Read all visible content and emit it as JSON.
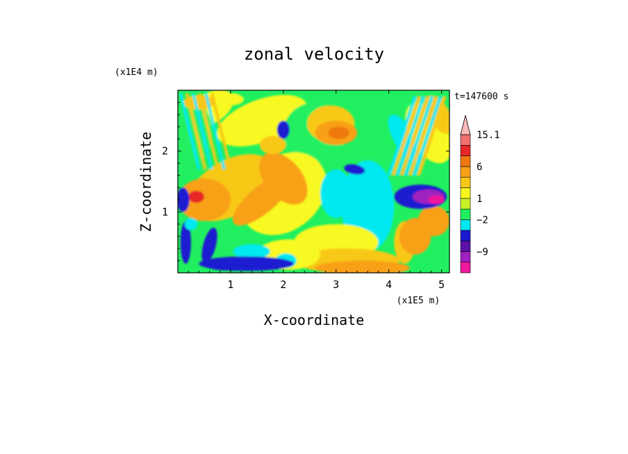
{
  "chart_data": {
    "type": "heatmap",
    "title": "zonal velocity",
    "xlabel": "X-coordinate",
    "ylabel": "Z-coordinate",
    "x_unit": "(x1E5 m)",
    "y_unit": "(x1E4 m)",
    "time_label": "t=147600 s",
    "xlim": [
      0,
      5.15
    ],
    "ylim": [
      0,
      3.0
    ],
    "x_ticks": [
      1,
      2,
      3,
      4,
      5
    ],
    "y_ticks": [
      1,
      2
    ],
    "colorbar": {
      "labels": [
        {
          "value": 15.1,
          "text": "15.1"
        },
        {
          "value": 6,
          "text": "6"
        },
        {
          "value": 1,
          "text": "1"
        },
        {
          "value": -2,
          "text": "−2"
        },
        {
          "value": -9,
          "text": "−9"
        }
      ],
      "levels": [
        {
          "color": "#f0189c",
          "lo": -15,
          "hi": -12
        },
        {
          "color": "#a020c0",
          "lo": -12,
          "hi": -9
        },
        {
          "color": "#5a10a8",
          "lo": -9,
          "hi": -6
        },
        {
          "color": "#1a1ad0",
          "lo": -6,
          "hi": -3
        },
        {
          "color": "#00e8f0",
          "lo": -3,
          "hi": -2
        },
        {
          "color": "#20f060",
          "lo": -2,
          "hi": 0
        },
        {
          "color": "#c8f028",
          "lo": 0,
          "hi": 1
        },
        {
          "color": "#f8f820",
          "lo": 1,
          "hi": 2
        },
        {
          "color": "#f8c818",
          "lo": 2,
          "hi": 3
        },
        {
          "color": "#f8a018",
          "lo": 3,
          "hi": 6
        },
        {
          "color": "#f07810",
          "lo": 6,
          "hi": 9
        },
        {
          "color": "#e82828",
          "lo": 9,
          "hi": 12
        },
        {
          "color": "#f07070",
          "lo": 12,
          "hi": 15.1
        },
        {
          "color": "#f8b8b8",
          "lo": 15.1,
          "hi": 18
        }
      ]
    },
    "background_color": "#20f060"
  }
}
